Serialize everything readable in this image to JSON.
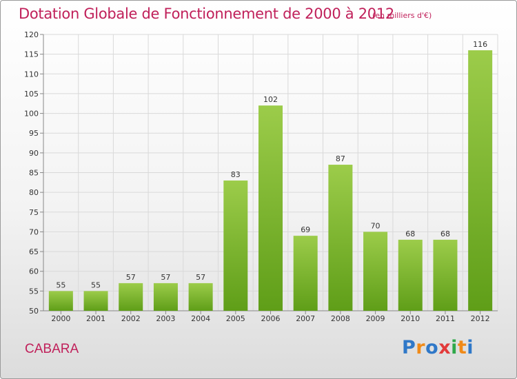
{
  "header": {
    "title": "Dotation Globale de Fonctionnement de 2000 à 2012",
    "subtitle": "(en milliers d'€)"
  },
  "footer": {
    "commune": "CABARA",
    "logo_letters": [
      "P",
      "r",
      "o",
      "x",
      "i",
      "t",
      "i"
    ]
  },
  "colors": {
    "title": "#c0205a",
    "bar_top": "#9ccc4a",
    "bar_bottom": "#5f9e18",
    "grid": "#d9d9d9",
    "axis_text": "#333333",
    "logo": [
      "#2f78c8",
      "#f08a18",
      "#2f78c8",
      "#e23a3a",
      "#2fa84a",
      "#f08a18",
      "#2f78c8"
    ]
  },
  "chart_data": {
    "type": "bar",
    "title": "Dotation Globale de Fonctionnement de 2000 à 2012",
    "subtitle": "(en milliers d'€)",
    "categories": [
      "2000",
      "2001",
      "2002",
      "2003",
      "2004",
      "2005",
      "2006",
      "2007",
      "2008",
      "2009",
      "2010",
      "2011",
      "2012"
    ],
    "values": [
      55,
      55,
      57,
      57,
      57,
      83,
      102,
      69,
      87,
      70,
      68,
      68,
      116
    ],
    "ylim": [
      50,
      120
    ],
    "yticks": [
      50,
      55,
      60,
      65,
      70,
      75,
      80,
      85,
      90,
      95,
      100,
      105,
      110,
      115,
      120
    ],
    "grid": true,
    "data_labels": true
  }
}
